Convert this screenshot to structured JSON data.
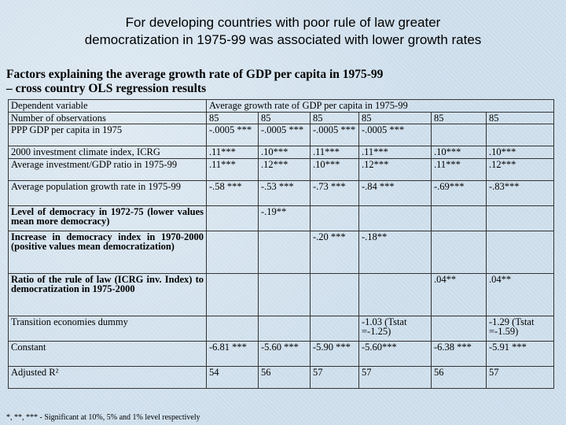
{
  "slide_title": {
    "line1": "For developing countries with poor rule of law greater",
    "line2": "democratization in 1975-99 was associated with lower growth rates"
  },
  "table_title": {
    "line1": "Factors explaining the average growth rate of GDP per capita in 1975-99",
    "line2": "– cross country OLS regression results"
  },
  "table": {
    "header": {
      "label": "Dependent variable",
      "value": "Average growth rate of GDP per capita in 1975-99"
    },
    "rows": [
      {
        "label": "Number of observations",
        "cells": [
          "85",
          "85",
          "85",
          "85",
          "85",
          "85"
        ]
      },
      {
        "label": "PPP GDP per capita in 1975",
        "cells": [
          "-.0005 ***",
          "-.0005 ***",
          "-.0005 ***",
          "-.0005 ***",
          "",
          ""
        ]
      },
      {
        "label": "2000 investment climate index, ICRG",
        "cells": [
          ".11***",
          ".10***",
          ".11***",
          ".11***",
          ".10***",
          ".10***"
        ]
      },
      {
        "label": "Average investment/GDP ratio in 1975-99",
        "cells": [
          ".11***",
          ".12***",
          ".10***",
          ".12***",
          ".11***",
          ".12***"
        ]
      },
      {
        "label": "Average population growth rate in 1975-99",
        "cells": [
          "-.58 ***",
          "-.53 ***",
          "-.73 ***",
          "-.84 ***",
          "-.69***",
          "-.83***"
        ]
      },
      {
        "label": "Level of democracy in 1972-75 (lower values mean more democracy)",
        "cells": [
          "",
          "-.19**",
          "",
          "",
          "",
          ""
        ]
      },
      {
        "label": "Increase in democracy index in 1970-2000 (positive values mean democratization)",
        "cells": [
          "",
          "",
          "-.20 ***",
          "-.18**",
          "",
          ""
        ]
      },
      {
        "label": "Ratio of the rule of law (ICRG inv. Index) to democratization in 1975-2000",
        "cells": [
          "",
          "",
          "",
          "",
          ".04**",
          ".04**"
        ]
      },
      {
        "label": "Transition economies dummy",
        "cells": [
          "",
          "",
          "",
          "-1.03 (Tstat =-1.25)",
          "",
          "-1.29 (Tstat =-1.59)"
        ]
      },
      {
        "label": "Constant",
        "cells": [
          "-6.81 ***",
          "-5.60 ***",
          "-5.90 ***",
          "-5.60***",
          "-6.38 ***",
          "-5.91 ***"
        ]
      },
      {
        "label": "Adjusted R²",
        "cells": [
          "54",
          "56",
          "57",
          "57",
          "56",
          "57"
        ]
      }
    ]
  },
  "footnote": "*, **, *** - Significant at 10%, 5% and 1% level respectively"
}
